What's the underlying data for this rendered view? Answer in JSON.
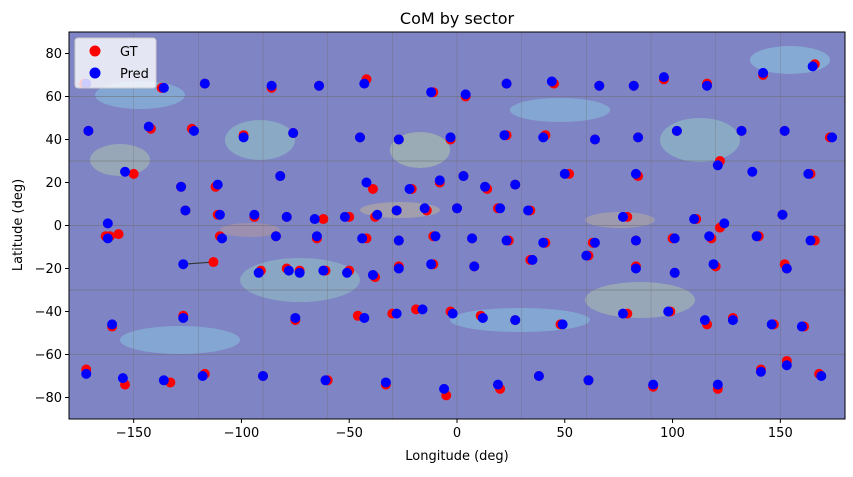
{
  "chart_data": {
    "type": "scatter",
    "title": "CoM by sector",
    "xlabel": "Longitude (deg)",
    "ylabel": "Latitude (deg)",
    "xlim": [
      -180,
      180
    ],
    "ylim": [
      -90,
      90
    ],
    "xticks": [
      -150,
      -100,
      -50,
      0,
      50,
      100,
      150
    ],
    "yticks": [
      -80,
      -60,
      -40,
      -20,
      0,
      20,
      40,
      60,
      80
    ],
    "xtick_labels": [
      "−150",
      "−100",
      "−50",
      "0",
      "50",
      "100",
      "150"
    ],
    "ytick_labels": [
      "−80",
      "−60",
      "−40",
      "−20",
      "0",
      "20",
      "40",
      "60",
      "80"
    ],
    "legend_position": "top-left",
    "background": "semi-transparent global atmospheric field map with sector grid lines",
    "colors": {
      "gt": "#ff0000",
      "pred": "#0000ff",
      "connector": "#333333"
    },
    "series": [
      {
        "name": "GT",
        "points": [
          [
            -173,
            66
          ],
          [
            -137,
            64
          ],
          [
            -117,
            66
          ],
          [
            -86,
            64
          ],
          [
            -64,
            65
          ],
          [
            -42,
            68
          ],
          [
            -11,
            62
          ],
          [
            4,
            60
          ],
          [
            23,
            66
          ],
          [
            45,
            66
          ],
          [
            66,
            65
          ],
          [
            82,
            65
          ],
          [
            96,
            68
          ],
          [
            116,
            66
          ],
          [
            142,
            70
          ],
          [
            166,
            75
          ],
          [
            -171,
            44
          ],
          [
            -142,
            45
          ],
          [
            -123,
            45
          ],
          [
            -99,
            42
          ],
          [
            -76,
            43
          ],
          [
            -45,
            41
          ],
          [
            -27,
            40
          ],
          [
            -3,
            40
          ],
          [
            23,
            42
          ],
          [
            41,
            42
          ],
          [
            64,
            40
          ],
          [
            84,
            41
          ],
          [
            102,
            44
          ],
          [
            132,
            44
          ],
          [
            152,
            44
          ],
          [
            173,
            41
          ],
          [
            -150,
            24
          ],
          [
            -128,
            18
          ],
          [
            -112,
            18
          ],
          [
            -82,
            23
          ],
          [
            -39,
            17
          ],
          [
            -21,
            17
          ],
          [
            -8,
            20
          ],
          [
            3,
            23
          ],
          [
            14,
            17
          ],
          [
            27,
            19
          ],
          [
            52,
            24
          ],
          [
            84,
            23
          ],
          [
            122,
            30
          ],
          [
            164,
            24
          ],
          [
            -163,
            -5
          ],
          [
            -157,
            -4
          ],
          [
            -126,
            7
          ],
          [
            -111,
            5
          ],
          [
            -94,
            4
          ],
          [
            -79,
            4
          ],
          [
            -62,
            3
          ],
          [
            -50,
            4
          ],
          [
            -38,
            4
          ],
          [
            -28,
            7
          ],
          [
            -14,
            7
          ],
          [
            0,
            8
          ],
          [
            19,
            8
          ],
          [
            34,
            7
          ],
          [
            79,
            4
          ],
          [
            111,
            3
          ],
          [
            151,
            5
          ],
          [
            -161,
            -5
          ],
          [
            -110,
            -5
          ],
          [
            -84,
            -5
          ],
          [
            -65,
            -6
          ],
          [
            -42,
            -6
          ],
          [
            -27,
            -7
          ],
          [
            -11,
            -5
          ],
          [
            7,
            -6
          ],
          [
            24,
            -7
          ],
          [
            41,
            -8
          ],
          [
            63,
            -8
          ],
          [
            83,
            -7
          ],
          [
            100,
            -6
          ],
          [
            118,
            -6
          ],
          [
            122,
            -1
          ],
          [
            140,
            -5
          ],
          [
            166,
            -7
          ],
          [
            -113,
            -17
          ],
          [
            -91,
            -21
          ],
          [
            -79,
            -20
          ],
          [
            -73,
            -21
          ],
          [
            -61,
            -21
          ],
          [
            -50,
            -21
          ],
          [
            -38,
            -24
          ],
          [
            -27,
            -19
          ],
          [
            -11,
            -18
          ],
          [
            8,
            -19
          ],
          [
            34,
            -16
          ],
          [
            61,
            -14
          ],
          [
            83,
            -19
          ],
          [
            101,
            -22
          ],
          [
            120,
            -19
          ],
          [
            152,
            -18
          ],
          [
            153,
            -20
          ],
          [
            -160,
            -47
          ],
          [
            -127,
            -42
          ],
          [
            -75,
            -44
          ],
          [
            -46,
            -42
          ],
          [
            -30,
            -41
          ],
          [
            -19,
            -39
          ],
          [
            -3,
            -40
          ],
          [
            11,
            -42
          ],
          [
            27,
            -44
          ],
          [
            48,
            -46
          ],
          [
            79,
            -41
          ],
          [
            99,
            -40
          ],
          [
            116,
            -46
          ],
          [
            128,
            -43
          ],
          [
            147,
            -46
          ],
          [
            161,
            -47
          ],
          [
            -172,
            -67
          ],
          [
            -154,
            -74
          ],
          [
            -133,
            -73
          ],
          [
            -117,
            -69
          ],
          [
            -90,
            -70
          ],
          [
            -60,
            -72
          ],
          [
            -33,
            -74
          ],
          [
            -5,
            -79
          ],
          [
            20,
            -76
          ],
          [
            38,
            -70
          ],
          [
            61,
            -72
          ],
          [
            91,
            -75
          ],
          [
            121,
            -76
          ],
          [
            141,
            -67
          ],
          [
            153,
            -63
          ],
          [
            168,
            -69
          ]
        ]
      },
      {
        "name": "Pred",
        "points": [
          [
            -172,
            66
          ],
          [
            -136,
            64
          ],
          [
            -117,
            66
          ],
          [
            -86,
            65
          ],
          [
            -64,
            65
          ],
          [
            -43,
            66
          ],
          [
            -12,
            62
          ],
          [
            4,
            61
          ],
          [
            23,
            66
          ],
          [
            44,
            67
          ],
          [
            66,
            65
          ],
          [
            82,
            65
          ],
          [
            96,
            69
          ],
          [
            116,
            65
          ],
          [
            142,
            71
          ],
          [
            165,
            74
          ],
          [
            -171,
            44
          ],
          [
            -143,
            46
          ],
          [
            -122,
            44
          ],
          [
            -99,
            41
          ],
          [
            -76,
            43
          ],
          [
            -45,
            41
          ],
          [
            -27,
            40
          ],
          [
            -3,
            41
          ],
          [
            22,
            42
          ],
          [
            40,
            41
          ],
          [
            64,
            40
          ],
          [
            84,
            41
          ],
          [
            102,
            44
          ],
          [
            132,
            44
          ],
          [
            152,
            44
          ],
          [
            174,
            41
          ],
          [
            -154,
            25
          ],
          [
            -128,
            18
          ],
          [
            -111,
            19
          ],
          [
            -82,
            23
          ],
          [
            -42,
            20
          ],
          [
            -22,
            17
          ],
          [
            -8,
            21
          ],
          [
            3,
            23
          ],
          [
            13,
            18
          ],
          [
            27,
            19
          ],
          [
            50,
            24
          ],
          [
            83,
            24
          ],
          [
            121,
            28
          ],
          [
            137,
            25
          ],
          [
            163,
            24
          ],
          [
            -162,
            1
          ],
          [
            -126,
            7
          ],
          [
            -110,
            5
          ],
          [
            -94,
            5
          ],
          [
            -79,
            4
          ],
          [
            -66,
            3
          ],
          [
            -52,
            4
          ],
          [
            -37,
            5
          ],
          [
            -28,
            7
          ],
          [
            -15,
            8
          ],
          [
            0,
            8
          ],
          [
            20,
            8
          ],
          [
            33,
            7
          ],
          [
            77,
            4
          ],
          [
            110,
            3
          ],
          [
            151,
            5
          ],
          [
            -162,
            -6
          ],
          [
            -109,
            -6
          ],
          [
            -84,
            -5
          ],
          [
            -65,
            -5
          ],
          [
            -44,
            -6
          ],
          [
            -27,
            -7
          ],
          [
            -10,
            -5
          ],
          [
            7,
            -6
          ],
          [
            23,
            -7
          ],
          [
            40,
            -8
          ],
          [
            64,
            -8
          ],
          [
            83,
            -7
          ],
          [
            101,
            -6
          ],
          [
            117,
            -5
          ],
          [
            124,
            1
          ],
          [
            139,
            -5
          ],
          [
            164,
            -7
          ],
          [
            -127,
            -18
          ],
          [
            -92,
            -22
          ],
          [
            -78,
            -21
          ],
          [
            -73,
            -22
          ],
          [
            -62,
            -21
          ],
          [
            -51,
            -22
          ],
          [
            -39,
            -23
          ],
          [
            -27,
            -20
          ],
          [
            -12,
            -18
          ],
          [
            8,
            -19
          ],
          [
            35,
            -16
          ],
          [
            60,
            -14
          ],
          [
            83,
            -20
          ],
          [
            101,
            -22
          ],
          [
            119,
            -18
          ],
          [
            153,
            -20
          ],
          [
            -160,
            -46
          ],
          [
            -127,
            -43
          ],
          [
            -75,
            -43
          ],
          [
            -43,
            -43
          ],
          [
            -28,
            -41
          ],
          [
            -16,
            -39
          ],
          [
            -2,
            -41
          ],
          [
            12,
            -43
          ],
          [
            27,
            -44
          ],
          [
            49,
            -46
          ],
          [
            77,
            -41
          ],
          [
            98,
            -40
          ],
          [
            115,
            -44
          ],
          [
            128,
            -44
          ],
          [
            146,
            -46
          ],
          [
            160,
            -47
          ],
          [
            -172,
            -69
          ],
          [
            -155,
            -71
          ],
          [
            -136,
            -72
          ],
          [
            -118,
            -70
          ],
          [
            -90,
            -70
          ],
          [
            -61,
            -72
          ],
          [
            -33,
            -73
          ],
          [
            -6,
            -76
          ],
          [
            19,
            -74
          ],
          [
            38,
            -70
          ],
          [
            61,
            -72
          ],
          [
            91,
            -74
          ],
          [
            121,
            -74
          ],
          [
            141,
            -68
          ],
          [
            153,
            -65
          ],
          [
            169,
            -70
          ]
        ]
      }
    ],
    "connectors": [
      [
        -113,
        -17,
        -127,
        -18
      ]
    ]
  }
}
